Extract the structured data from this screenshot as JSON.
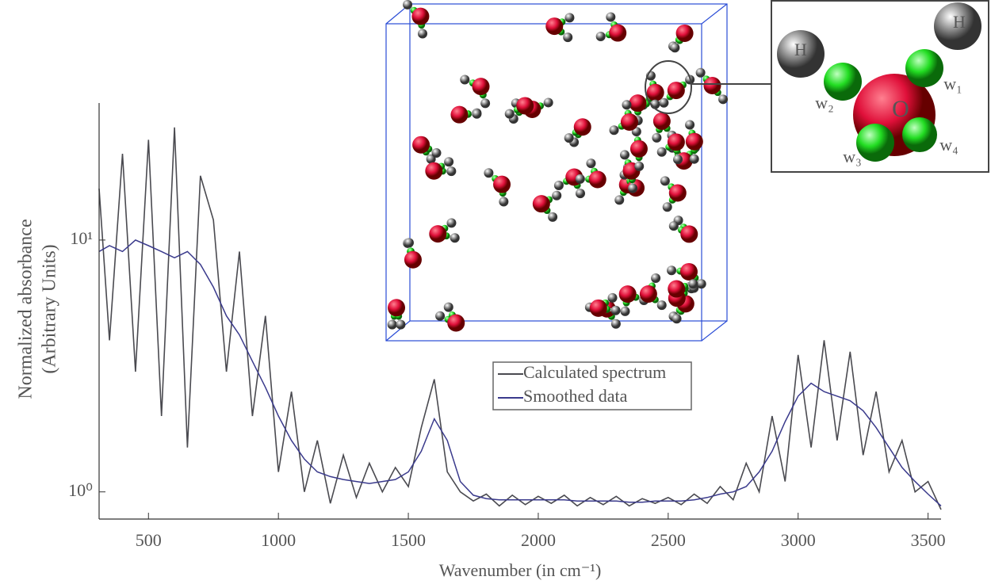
{
  "chart_data": {
    "type": "line",
    "xlabel": "Wavenumber (in cm⁻¹)",
    "ylabel": [
      "Normalized absorbance",
      "(Arbitrary Units)"
    ],
    "x": [
      310,
      350,
      400,
      450,
      500,
      550,
      600,
      650,
      700,
      750,
      800,
      850,
      900,
      950,
      1000,
      1050,
      1100,
      1150,
      1200,
      1250,
      1300,
      1350,
      1400,
      1450,
      1500,
      1550,
      1600,
      1650,
      1700,
      1750,
      1800,
      1850,
      1900,
      1950,
      2000,
      2050,
      2100,
      2150,
      2200,
      2250,
      2300,
      2350,
      2400,
      2450,
      2500,
      2550,
      2600,
      2650,
      2700,
      2750,
      2800,
      2850,
      2900,
      2950,
      3000,
      3050,
      3100,
      3150,
      3200,
      3250,
      3300,
      3350,
      3400,
      3450,
      3500,
      3550
    ],
    "series": [
      {
        "name": "Calculated spectrum",
        "color": "#4a4a50",
        "values": [
          16,
          4,
          22,
          3,
          25,
          2,
          28,
          1.5,
          18,
          12,
          3,
          9,
          2,
          5,
          1.2,
          2.5,
          1.0,
          1.6,
          0.9,
          1.4,
          0.95,
          1.3,
          1.0,
          1.25,
          1.05,
          1.8,
          2.8,
          1.2,
          1.0,
          0.92,
          0.98,
          0.88,
          0.97,
          0.89,
          0.96,
          0.9,
          0.97,
          0.88,
          0.95,
          0.89,
          0.96,
          0.88,
          0.94,
          0.9,
          0.95,
          0.89,
          0.98,
          0.9,
          1.05,
          0.93,
          1.3,
          1.0,
          2.0,
          1.1,
          3.5,
          1.5,
          4.0,
          1.6,
          3.6,
          1.4,
          2.5,
          1.2,
          1.6,
          1.0,
          1.1,
          0.85
        ]
      },
      {
        "name": "Smoothed data",
        "color": "#3a3a8c",
        "values": [
          9,
          9.5,
          9,
          10,
          9.5,
          9,
          8.5,
          9,
          8,
          6.5,
          5,
          4.2,
          3.3,
          2.6,
          2.0,
          1.6,
          1.35,
          1.2,
          1.15,
          1.12,
          1.1,
          1.08,
          1.1,
          1.12,
          1.2,
          1.45,
          1.95,
          1.6,
          1.1,
          0.97,
          0.94,
          0.93,
          0.93,
          0.93,
          0.93,
          0.93,
          0.93,
          0.92,
          0.92,
          0.92,
          0.92,
          0.91,
          0.91,
          0.92,
          0.92,
          0.92,
          0.93,
          0.95,
          0.98,
          1.0,
          1.05,
          1.2,
          1.45,
          1.9,
          2.4,
          2.7,
          2.5,
          2.4,
          2.3,
          2.1,
          1.8,
          1.5,
          1.25,
          1.1,
          0.98,
          0.88
        ]
      }
    ],
    "xlim": [
      310,
      3550
    ],
    "xticks": [
      500,
      1000,
      1500,
      2000,
      2500,
      3000,
      3500
    ],
    "ylim": [
      0.78,
      35
    ],
    "log_y": true,
    "yticks": [
      {
        "value": 1,
        "label": "10⁰"
      },
      {
        "value": 10,
        "label": "10¹"
      }
    ],
    "annotations": [
      "H",
      "H",
      "O",
      "w₁",
      "w₂",
      "w₃",
      "w₄"
    ]
  }
}
